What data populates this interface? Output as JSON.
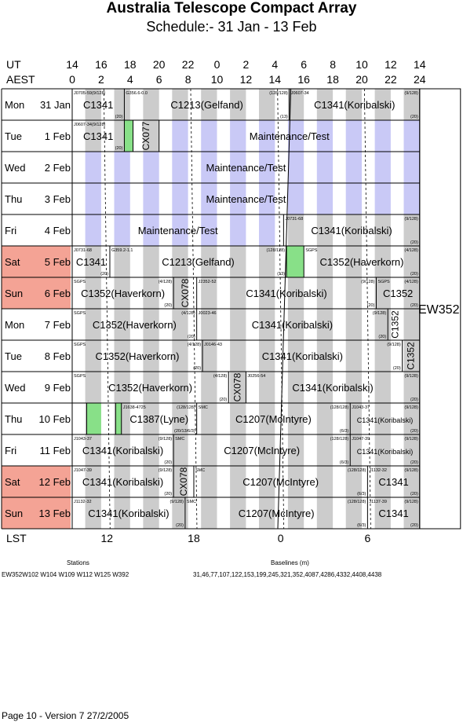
{
  "header": {
    "title": "Australia Telescope Compact Array",
    "subtitle": "Schedule:- 31 Jan - 13 Feb"
  },
  "axes": {
    "ut_label": "UT",
    "aest_label": "AEST",
    "lst_label": "LST",
    "ut_ticks": [
      "14",
      "16",
      "18",
      "20",
      "22",
      "0",
      "2",
      "4",
      "6",
      "8",
      "10",
      "12",
      "14"
    ],
    "aest_ticks": [
      "0",
      "2",
      "4",
      "6",
      "8",
      "10",
      "12",
      "14",
      "16",
      "18",
      "20",
      "22",
      "24"
    ],
    "lst_ticks": [
      "12",
      "18",
      "0",
      "6"
    ]
  },
  "colors": {
    "weekend": "#f4a395",
    "maintenance": "#c9c9f6",
    "night": "#cccccc",
    "green": "#88e088"
  },
  "configuration": "EW352",
  "rows": [
    {
      "day": "Mon",
      "date": "31 Jan",
      "weekend": false
    },
    {
      "day": "Tue",
      "date": "1 Feb",
      "weekend": false
    },
    {
      "day": "Wed",
      "date": "2 Feb",
      "weekend": false
    },
    {
      "day": "Thu",
      "date": "3 Feb",
      "weekend": false
    },
    {
      "day": "Fri",
      "date": "4 Feb",
      "weekend": false
    },
    {
      "day": "Sat",
      "date": "5 Feb",
      "weekend": true
    },
    {
      "day": "Sun",
      "date": "6 Feb",
      "weekend": true
    },
    {
      "day": "Mon",
      "date": "7 Feb",
      "weekend": false
    },
    {
      "day": "Tue",
      "date": "8 Feb",
      "weekend": false
    },
    {
      "day": "Wed",
      "date": "9 Feb",
      "weekend": false
    },
    {
      "day": "Thu",
      "date": "10 Feb",
      "weekend": false
    },
    {
      "day": "Fri",
      "date": "11 Feb",
      "weekend": false
    },
    {
      "day": "Sat",
      "date": "12 Feb",
      "weekend": true
    },
    {
      "day": "Sun",
      "date": "13 Feb",
      "weekend": true
    }
  ],
  "blocks": [
    {
      "row": 0,
      "start": 0,
      "end": 1.8,
      "label": "C1341",
      "tl": "J0705-59(9/128)",
      "br": "(20)"
    },
    {
      "row": 0,
      "start": 1.8,
      "end": 7.5,
      "label": "C1213(Gelfand)",
      "tl": "G356.6-0.0",
      "tr": "(128/128)",
      "br": "(13)"
    },
    {
      "row": 0,
      "start": 7.5,
      "end": 12,
      "label": "C1341(Koribalski)",
      "tl": "J0607-34",
      "tr": "(9/128)",
      "br": "(20)"
    },
    {
      "row": 1,
      "start": 0,
      "end": 1.8,
      "label": "C1341",
      "tl": "J0607-34(9/128)",
      "br": "(20)"
    },
    {
      "row": 1,
      "start": 1.8,
      "end": 2.1,
      "fill": "green"
    },
    {
      "row": 1,
      "start": 2.1,
      "end": 3.0,
      "label": "CX077",
      "vertical": true
    },
    {
      "row": 1,
      "start": 3.0,
      "end": 12,
      "label": "Maintenance/Test",
      "maint": true
    },
    {
      "row": 2,
      "start": 0,
      "end": 12,
      "label": "Maintenance/Test",
      "maint": true
    },
    {
      "row": 3,
      "start": 0,
      "end": 12,
      "label": "Maintenance/Test",
      "maint": true
    },
    {
      "row": 4,
      "start": 0,
      "end": 7.3,
      "label": "Maintenance/Test",
      "maint": true
    },
    {
      "row": 4,
      "start": 7.3,
      "end": 12,
      "label": "C1341(Koribalski)",
      "tl": "J0731-68",
      "tr": "(9/128)",
      "br": "(20)"
    },
    {
      "row": 5,
      "start": 0,
      "end": 1.3,
      "label": "C1341",
      "tl": "J0731-68",
      "br": "(20)"
    },
    {
      "row": 5,
      "start": 1.3,
      "end": 7.4,
      "label": "C1213(Gelfand)",
      "tl": "G359.2-1.1",
      "tr": "(128/128)",
      "br": "(13)"
    },
    {
      "row": 5,
      "start": 7.4,
      "end": 8.0,
      "fill": "green"
    },
    {
      "row": 5,
      "start": 8.0,
      "end": 12,
      "label": "C1352(Haverkorn)",
      "tl": "SGPS",
      "tr": "(4/128)",
      "br": "(20)"
    },
    {
      "row": 6,
      "start": 0,
      "end": 3.5,
      "label": "C1352(Haverkorn)",
      "tl": "SGPS",
      "tr": "(4/128)",
      "br": "(20)"
    },
    {
      "row": 6,
      "start": 3.5,
      "end": 4.3,
      "label": "CX078",
      "vertical": true
    },
    {
      "row": 6,
      "start": 4.3,
      "end": 10.5,
      "label": "C1341(Koribalski)",
      "tl": "J2352-52",
      "tr": "(9/128)",
      "br": "(20)"
    },
    {
      "row": 6,
      "start": 10.5,
      "end": 12,
      "label": "C1352",
      "tl": "SGPS",
      "tr": "(4/128)",
      "br": "(20)"
    },
    {
      "row": 7,
      "start": 0,
      "end": 4.3,
      "label": "C1352(Haverkorn)",
      "tl": "SGPS",
      "tr": "(4/128)",
      "br": "(20)"
    },
    {
      "row": 7,
      "start": 4.3,
      "end": 10.9,
      "label": "C1341(Koribalski)",
      "tl": "J0023-46",
      "tr": "(9/128)",
      "br": "(20)"
    },
    {
      "row": 7,
      "start": 10.9,
      "end": 11.4,
      "label": "C1352",
      "vertical": true
    },
    {
      "row": 8,
      "start": 0,
      "end": 4.5,
      "label": "C1352(Haverkorn)",
      "tl": "SGPS",
      "tr": "(4/128)",
      "br": "(20)"
    },
    {
      "row": 8,
      "start": 4.5,
      "end": 11.4,
      "label": "C1341(Koribalski)",
      "tl": "J0146-43",
      "tr": "(9/128)",
      "br": "(20)"
    },
    {
      "row": 8,
      "start": 11.4,
      "end": 12,
      "label": "C1352",
      "vertical": true
    },
    {
      "row": 9,
      "start": 0,
      "end": 5.4,
      "label": "C1352(Haverkorn)",
      "tl": "SGPS",
      "tr": "(4/128)",
      "br": "(20)"
    },
    {
      "row": 9,
      "start": 5.4,
      "end": 6.0,
      "label": "CX078",
      "vertical": true
    },
    {
      "row": 9,
      "start": 6.0,
      "end": 12,
      "label": "C1341(Koribalski)",
      "tl": "J0256-54",
      "tr": "(9/128)",
      "br": "(20)"
    },
    {
      "row": 10,
      "start": 0,
      "end": 1.5,
      "label": ""
    },
    {
      "row": 10,
      "start": 0.5,
      "end": 1.0,
      "fill": "green"
    },
    {
      "row": 10,
      "start": 1.5,
      "end": 1.7,
      "fill": "green"
    },
    {
      "row": 10,
      "start": 1.7,
      "end": 4.3,
      "label": "C1387(Lyne)",
      "tl": "J1638-4725",
      "tr": "(128/128)",
      "br": "(20/13/6/3)"
    },
    {
      "row": 10,
      "start": 4.3,
      "end": 9.6,
      "label": "C1207(McIntyre)",
      "tl": "SMC",
      "tr": "(128/128)",
      "br": "(6/3)"
    },
    {
      "row": 10,
      "start": 9.6,
      "end": 12,
      "label": "C1341(Koribalski)",
      "tl": "J1043-37",
      "tr": "(9/128)",
      "br": "(20)",
      "small": true
    },
    {
      "row": 11,
      "start": 0,
      "end": 3.5,
      "label": "C1341(Koribalski)",
      "tl": "J1043-37",
      "tr": "(9/128)",
      "br": "(20)"
    },
    {
      "row": 11,
      "start": 3.5,
      "end": 9.6,
      "label": "C1207(McIntyre)",
      "tl": "SMC",
      "tr": "(128/128)",
      "br": "(6/3)"
    },
    {
      "row": 11,
      "start": 9.6,
      "end": 12,
      "label": "C1341(Koribalski)",
      "tl": "J1047-39",
      "tr": "(9/128)",
      "br": "(20)",
      "small": true
    },
    {
      "row": 12,
      "start": 0,
      "end": 3.5,
      "label": "C1341(Koribalski)",
      "tl": "J1047-39",
      "tr": "(9/128)",
      "br": "(20)"
    },
    {
      "row": 12,
      "start": 3.5,
      "end": 4.2,
      "label": "CX078",
      "vertical": true
    },
    {
      "row": 12,
      "start": 4.2,
      "end": 10.2,
      "label": "C1207(McIntyre)",
      "tl": "SMC",
      "tr": "(128/128)",
      "br": "(6/3)"
    },
    {
      "row": 12,
      "start": 10.2,
      "end": 12,
      "label": "C1341",
      "tl": "J1132-32",
      "tr": "(9/128)",
      "br": "(20)"
    },
    {
      "row": 13,
      "start": 0,
      "end": 3.9,
      "label": "C1341(Koribalski)",
      "tl": "J1132-32",
      "tr": "(9/128)",
      "br": "(20)"
    },
    {
      "row": 13,
      "start": 3.9,
      "end": 10.2,
      "label": "C1207(McIntyre)",
      "tl": "SMC",
      "tr": "(128/128)",
      "br": "(6/3)"
    },
    {
      "row": 13,
      "start": 10.2,
      "end": 12,
      "label": "C1341",
      "tl": "J1137-39",
      "tr": "(9/128)",
      "br": "(20)"
    }
  ],
  "stations": {
    "heading": "Stations",
    "value": "EW352W102 W104 W109 W112 W125 W392"
  },
  "baselines": {
    "heading": "Baselines (m)",
    "value": "31,46,77,107,122,153,199,245,321,352,4087,4286,4332,4408,4438"
  },
  "footer": "Page 10 - Version 7  27/2/2005"
}
